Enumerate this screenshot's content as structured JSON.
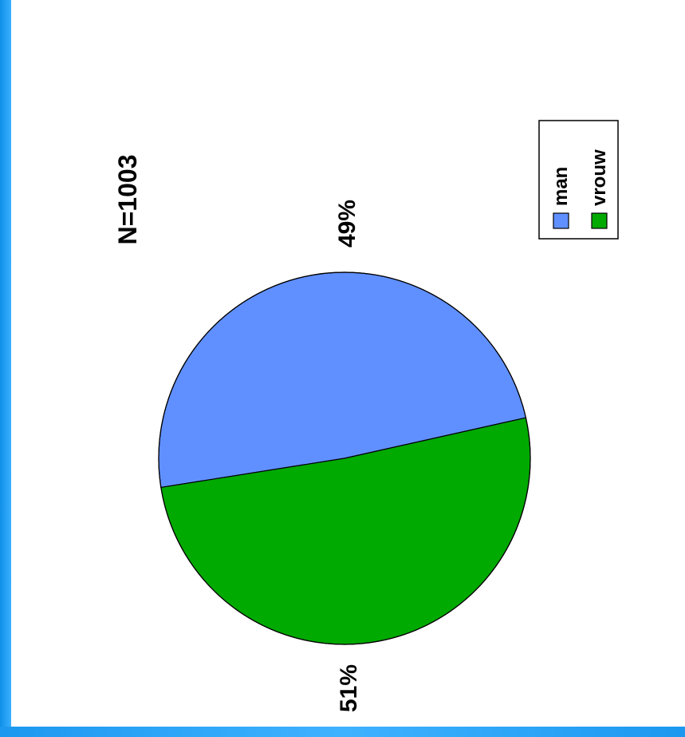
{
  "chart_data": {
    "type": "pie",
    "title": "N=1003",
    "categories": [
      "man",
      "vrouw"
    ],
    "values": [
      49,
      51
    ],
    "labels": [
      "49%",
      "51%"
    ],
    "colors": [
      "#6090ff",
      "#00aa00"
    ],
    "legend": {
      "position": "right",
      "entries": [
        "man",
        "vrouw"
      ]
    },
    "orientation": "rotated 90 degrees counter-clockwise"
  },
  "frame": {
    "left_border_color": "#1e9bf0",
    "bottom_border_color": "#1e9bf0"
  }
}
